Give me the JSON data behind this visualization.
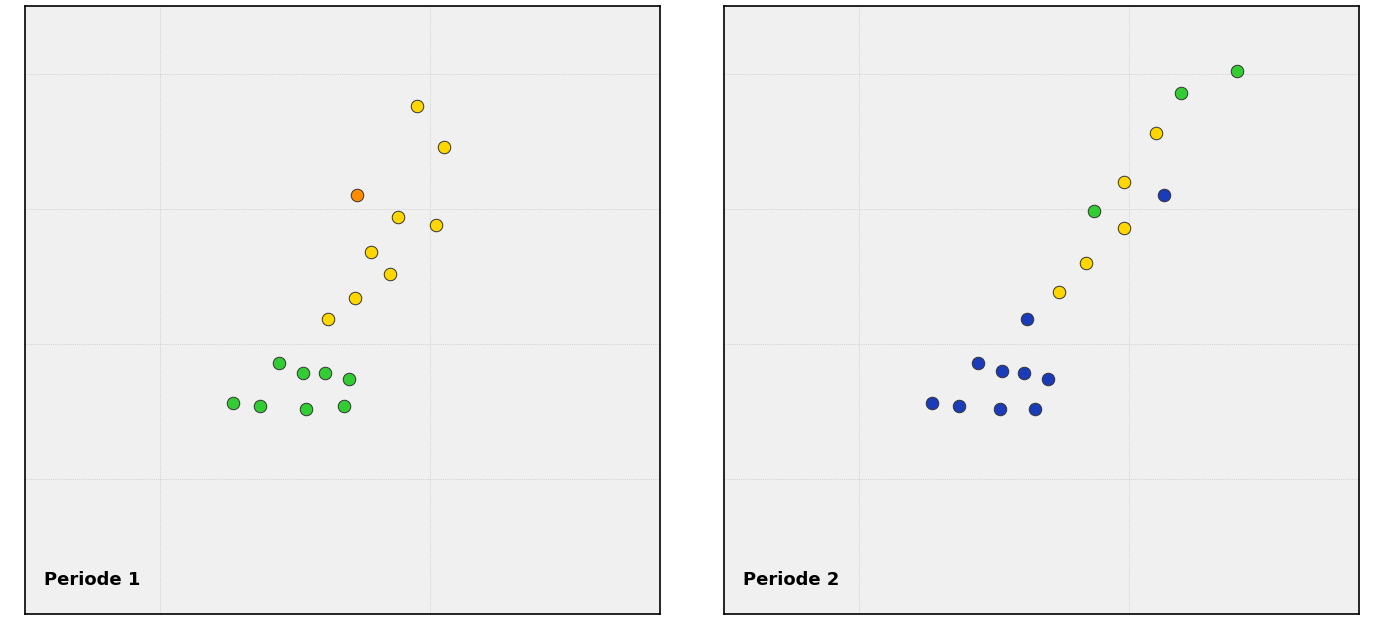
{
  "fig_width": 13.84,
  "fig_height": 6.2,
  "dpi": 100,
  "lon_min": 4.5,
  "lon_max": 6.85,
  "lat_min": 59.0,
  "lat_max": 61.25,
  "land_color": "#d3d3d3",
  "ocean_color": "#f0f0f0",
  "coast_color": "#444444",
  "coast_linewidth": 0.5,
  "grid_color": "#bbbbbb",
  "grid_linewidth": 0.5,
  "colors": {
    "green": "#32cd32",
    "yellow": "#ffd700",
    "orange": "#ff8c00",
    "blue": "#1a3cba"
  },
  "period1_dots": [
    {
      "lon": 5.95,
      "lat": 60.88,
      "color": "yellow"
    },
    {
      "lon": 6.05,
      "lat": 60.73,
      "color": "yellow"
    },
    {
      "lon": 5.73,
      "lat": 60.55,
      "color": "orange"
    },
    {
      "lon": 5.88,
      "lat": 60.47,
      "color": "yellow"
    },
    {
      "lon": 6.02,
      "lat": 60.44,
      "color": "yellow"
    },
    {
      "lon": 5.78,
      "lat": 60.34,
      "color": "yellow"
    },
    {
      "lon": 5.85,
      "lat": 60.26,
      "color": "yellow"
    },
    {
      "lon": 5.72,
      "lat": 60.17,
      "color": "yellow"
    },
    {
      "lon": 5.62,
      "lat": 60.09,
      "color": "yellow"
    },
    {
      "lon": 5.44,
      "lat": 59.93,
      "color": "green"
    },
    {
      "lon": 5.53,
      "lat": 59.89,
      "color": "green"
    },
    {
      "lon": 5.61,
      "lat": 59.89,
      "color": "green"
    },
    {
      "lon": 5.7,
      "lat": 59.87,
      "color": "green"
    },
    {
      "lon": 5.27,
      "lat": 59.78,
      "color": "green"
    },
    {
      "lon": 5.37,
      "lat": 59.77,
      "color": "green"
    },
    {
      "lon": 5.54,
      "lat": 59.76,
      "color": "green"
    },
    {
      "lon": 5.68,
      "lat": 59.77,
      "color": "green"
    }
  ],
  "period2_dots": [
    {
      "lon": 6.4,
      "lat": 61.01,
      "color": "green"
    },
    {
      "lon": 6.19,
      "lat": 60.93,
      "color": "green"
    },
    {
      "lon": 6.1,
      "lat": 60.78,
      "color": "yellow"
    },
    {
      "lon": 5.98,
      "lat": 60.6,
      "color": "yellow"
    },
    {
      "lon": 6.13,
      "lat": 60.55,
      "color": "blue"
    },
    {
      "lon": 5.87,
      "lat": 60.49,
      "color": "green"
    },
    {
      "lon": 5.98,
      "lat": 60.43,
      "color": "yellow"
    },
    {
      "lon": 5.84,
      "lat": 60.3,
      "color": "yellow"
    },
    {
      "lon": 5.74,
      "lat": 60.19,
      "color": "yellow"
    },
    {
      "lon": 5.62,
      "lat": 60.09,
      "color": "blue"
    },
    {
      "lon": 5.44,
      "lat": 59.93,
      "color": "blue"
    },
    {
      "lon": 5.53,
      "lat": 59.9,
      "color": "blue"
    },
    {
      "lon": 5.61,
      "lat": 59.89,
      "color": "blue"
    },
    {
      "lon": 5.7,
      "lat": 59.87,
      "color": "blue"
    },
    {
      "lon": 5.27,
      "lat": 59.78,
      "color": "blue"
    },
    {
      "lon": 5.37,
      "lat": 59.77,
      "color": "blue"
    },
    {
      "lon": 5.52,
      "lat": 59.76,
      "color": "blue"
    },
    {
      "lon": 5.65,
      "lat": 59.76,
      "color": "blue"
    }
  ],
  "label1": "Periode 1",
  "label2": "Periode 2",
  "label_fontsize": 13,
  "label_fontweight": "bold",
  "markersize": 9,
  "marker_edgecolor": "#333333",
  "marker_edgewidth": 0.7
}
